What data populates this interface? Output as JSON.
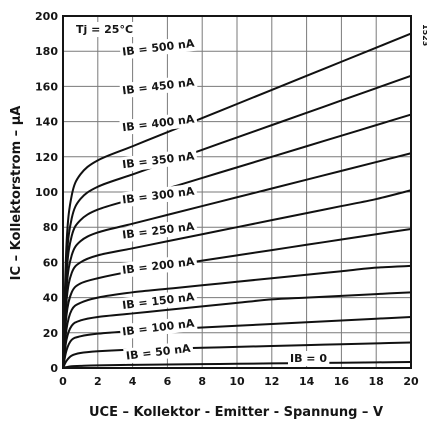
{
  "chart_data": {
    "type": "line",
    "title": "",
    "xlabel": "UCE – Kollektor - Emitter - Spannung – V",
    "ylabel": "IC – Kollektorstrom – µA",
    "xlim": [
      0,
      20
    ],
    "ylim": [
      0,
      200
    ],
    "x_ticks": [
      "0",
      "2",
      "4",
      "6",
      "8",
      "10",
      "12",
      "14",
      "16",
      "18",
      "20"
    ],
    "y_ticks": [
      "0",
      "20",
      "40",
      "60",
      "80",
      "100",
      "120",
      "140",
      "160",
      "180",
      "200"
    ],
    "grid": true,
    "legend": "none",
    "annotations": {
      "temperature": "Tj = 25°C",
      "side_code": "1523",
      "zero_curve": "IB = 0"
    },
    "x": [
      0,
      0.2,
      0.5,
      1,
      2,
      4,
      6,
      8,
      10,
      12,
      14,
      16,
      18,
      20
    ],
    "series": [
      {
        "name": "IB = 50 nA",
        "values": [
          0,
          4,
          7,
          8.5,
          9.5,
          10.5,
          11,
          11.5,
          12,
          12.5,
          13,
          13.5,
          14,
          14.5
        ]
      },
      {
        "name": "IB = 100 nA",
        "values": [
          0,
          10,
          16,
          18,
          19.5,
          21,
          22,
          23,
          24,
          25,
          26,
          27,
          28,
          29
        ]
      },
      {
        "name": "IB = 150 nA",
        "values": [
          0,
          16,
          24,
          27,
          29,
          31,
          33,
          35,
          37,
          39,
          40,
          41,
          42,
          43
        ]
      },
      {
        "name": "IB = 200 nA",
        "values": [
          0,
          22,
          33,
          37,
          40,
          43,
          45,
          47,
          49,
          51,
          53,
          55,
          57,
          58
        ]
      },
      {
        "name": "IB = 250 nA",
        "values": [
          0,
          30,
          43,
          48,
          51,
          55,
          58,
          61,
          64,
          67,
          70,
          73,
          76,
          79
        ]
      },
      {
        "name": "IB = 300 nA",
        "values": [
          0,
          38,
          54,
          60,
          64,
          68,
          72,
          76,
          80,
          84,
          88,
          92,
          96,
          101
        ]
      },
      {
        "name": "IB = 350 nA",
        "values": [
          0,
          45,
          64,
          72,
          77,
          82,
          87,
          92,
          97,
          102,
          107,
          112,
          117,
          122
        ]
      },
      {
        "name": "IB = 400 nA",
        "values": [
          0,
          53,
          75,
          84,
          90,
          96,
          102,
          108,
          114,
          120,
          126,
          132,
          138,
          144
        ]
      },
      {
        "name": "IB = 450 nA",
        "values": [
          0,
          60,
          85,
          96,
          103,
          110,
          117,
          124,
          131,
          138,
          145,
          152,
          159,
          166
        ]
      },
      {
        "name": "IB = 500 nA",
        "values": [
          0,
          70,
          98,
          110,
          118,
          126,
          134,
          142,
          150,
          158,
          166,
          174,
          182,
          190
        ]
      },
      {
        "name": "IB = 0",
        "values": [
          0,
          0.5,
          1,
          1.2,
          1.5,
          1.8,
          2,
          2.2,
          2.4,
          2.6,
          2.8,
          3,
          3.2,
          3.4
        ]
      }
    ],
    "curve_labels": [
      {
        "text": "IB = 50 nA",
        "x": 5.5,
        "y": 7
      },
      {
        "text": "IB = 100 nA",
        "x": 5.5,
        "y": 21
      },
      {
        "text": "IB = 150 nA",
        "x": 5.5,
        "y": 36
      },
      {
        "text": "IB = 200 nA",
        "x": 5.5,
        "y": 56
      },
      {
        "text": "IB = 250 nA",
        "x": 5.5,
        "y": 76
      },
      {
        "text": "IB = 300 nA",
        "x": 5.5,
        "y": 96
      },
      {
        "text": "IB = 350 nA",
        "x": 5.5,
        "y": 116
      },
      {
        "text": "IB = 400 nA",
        "x": 5.5,
        "y": 137
      },
      {
        "text": "IB = 450 nA",
        "x": 5.5,
        "y": 158
      },
      {
        "text": "IB = 500 nA",
        "x": 5.5,
        "y": 180
      }
    ]
  }
}
